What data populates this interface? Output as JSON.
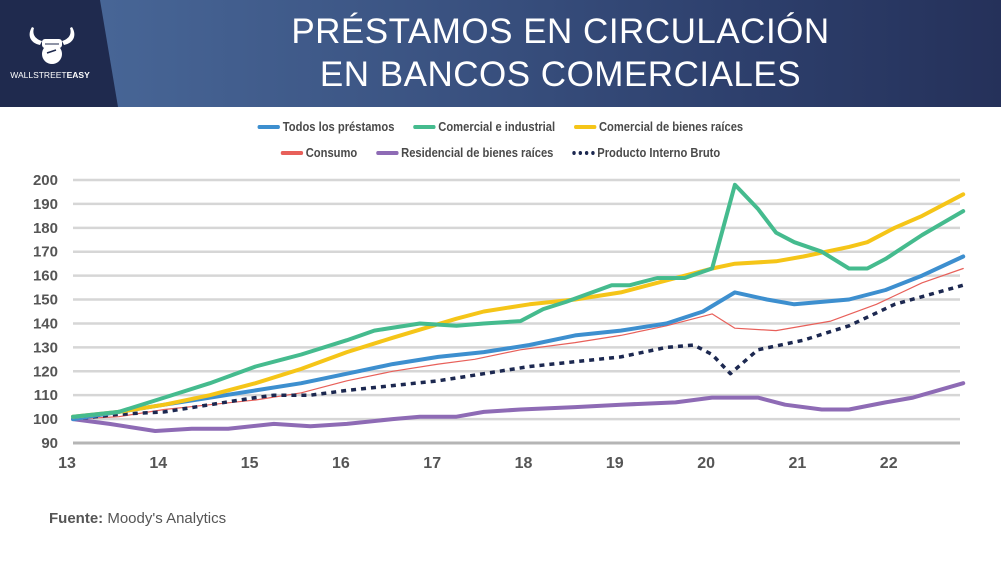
{
  "header": {
    "title_line1": "PRÉSTAMOS EN CIRCULACIÓN",
    "title_line2": "EN BANCOS COMERCIALES",
    "logo_text_light": "WALLSTREET",
    "logo_text_bold": "EASY",
    "logo_icon": "bull-fist-icon"
  },
  "footer": {
    "source_label": "Fuente:",
    "source_value": " Moody's Analytics"
  },
  "chart_data": {
    "type": "line",
    "title": "PRÉSTAMOS EN CIRCULACIÓN EN BANCOS COMERCIALES",
    "xlabel": "",
    "ylabel": "",
    "xlim": [
      13,
      22.75
    ],
    "ylim": [
      90,
      200
    ],
    "yticks": [
      90,
      100,
      110,
      120,
      130,
      140,
      150,
      160,
      170,
      180,
      190,
      200
    ],
    "xticks": [
      13,
      14,
      15,
      16,
      17,
      18,
      19,
      20,
      21,
      22
    ],
    "grid": "horizontal",
    "legend_position": "top-center",
    "series": [
      {
        "name": "Todos los préstamos",
        "color": "#3d8fcf",
        "style": "solid",
        "weight": "thick",
        "x": [
          13,
          13.5,
          14,
          14.5,
          15,
          15.5,
          16,
          16.5,
          17,
          17.5,
          18,
          18.5,
          19,
          19.5,
          19.9,
          20.25,
          20.6,
          20.9,
          21.5,
          21.9,
          22.3,
          22.75
        ],
        "y": [
          100,
          103,
          106,
          109,
          112,
          115,
          119,
          123,
          126,
          128,
          131,
          135,
          137,
          140,
          145,
          153,
          150,
          148,
          150,
          154,
          160,
          168
        ]
      },
      {
        "name": "Comercial e industrial",
        "color": "#45bb8e",
        "style": "solid",
        "weight": "thick",
        "x": [
          13,
          13.5,
          14,
          14.5,
          15,
          15.3,
          15.5,
          16,
          16.3,
          16.8,
          17.2,
          17.5,
          17.9,
          18.15,
          18.4,
          18.9,
          19.1,
          19.4,
          19.7,
          20,
          20.25,
          20.5,
          20.7,
          20.9,
          21.2,
          21.5,
          21.7,
          21.9,
          22.3,
          22.75
        ],
        "y": [
          101,
          103,
          109,
          115,
          122,
          125,
          127,
          133,
          137,
          140,
          139,
          140,
          141,
          146,
          149,
          156,
          156,
          159,
          159,
          163,
          198,
          188,
          178,
          174,
          170,
          163,
          163,
          167,
          177,
          187
        ]
      },
      {
        "name": "Comercial de bienes raíces",
        "color": "#f5c518",
        "style": "solid",
        "weight": "thick",
        "x": [
          13,
          13.5,
          14,
          14.5,
          15,
          15.5,
          16,
          16.5,
          17.2,
          17.5,
          18,
          18.5,
          19,
          19.5,
          20,
          20.25,
          20.7,
          21,
          21.5,
          21.7,
          22,
          22.3,
          22.75
        ],
        "y": [
          101,
          103,
          106,
          110,
          115,
          121,
          128,
          134,
          142,
          145,
          148,
          150,
          153,
          158,
          163,
          165,
          166,
          168,
          172,
          174,
          180,
          185,
          194
        ]
      },
      {
        "name": "Consumo",
        "color": "#e8605a",
        "style": "solid",
        "weight": "thin",
        "x": [
          13,
          13.5,
          14,
          14.5,
          15,
          15.5,
          16,
          16.5,
          17,
          17.4,
          17.9,
          18.5,
          19,
          19.5,
          20,
          20.25,
          20.7,
          21.3,
          21.8,
          22.3,
          22.75
        ],
        "y": [
          100,
          101,
          104,
          106,
          108,
          111,
          116,
          120,
          123,
          125,
          129,
          132,
          135,
          139,
          144,
          138,
          137,
          141,
          148,
          157,
          163
        ]
      },
      {
        "name": "Residencial de bienes raíces",
        "color": "#8e6bb5",
        "style": "solid",
        "weight": "thick",
        "x": [
          13,
          13.4,
          13.9,
          14.3,
          14.7,
          15.2,
          15.6,
          16,
          16.5,
          16.8,
          17.2,
          17.5,
          17.9,
          18.5,
          19,
          19.6,
          20,
          20.5,
          20.8,
          21.2,
          21.5,
          21.9,
          22.2,
          22.75
        ],
        "y": [
          100,
          98,
          95,
          96,
          96,
          98,
          97,
          98,
          100,
          101,
          101,
          103,
          104,
          105,
          106,
          107,
          109,
          109,
          106,
          104,
          104,
          107,
          109,
          115
        ]
      },
      {
        "name": "Producto Interno Bruto",
        "color": "#1c2850",
        "style": "dashed",
        "weight": "thick",
        "x": [
          13,
          13.5,
          14,
          14.5,
          15,
          15.2,
          15.6,
          16,
          16.5,
          17,
          17.5,
          18,
          18.5,
          19,
          19.5,
          19.8,
          20,
          20.2,
          20.5,
          21,
          21.5,
          22,
          22.75
        ],
        "y": [
          100,
          102,
          103,
          106,
          109,
          110,
          110,
          112,
          114,
          116,
          119,
          122,
          124,
          126,
          130,
          131,
          127,
          119,
          129,
          133,
          139,
          148,
          156
        ]
      }
    ]
  }
}
